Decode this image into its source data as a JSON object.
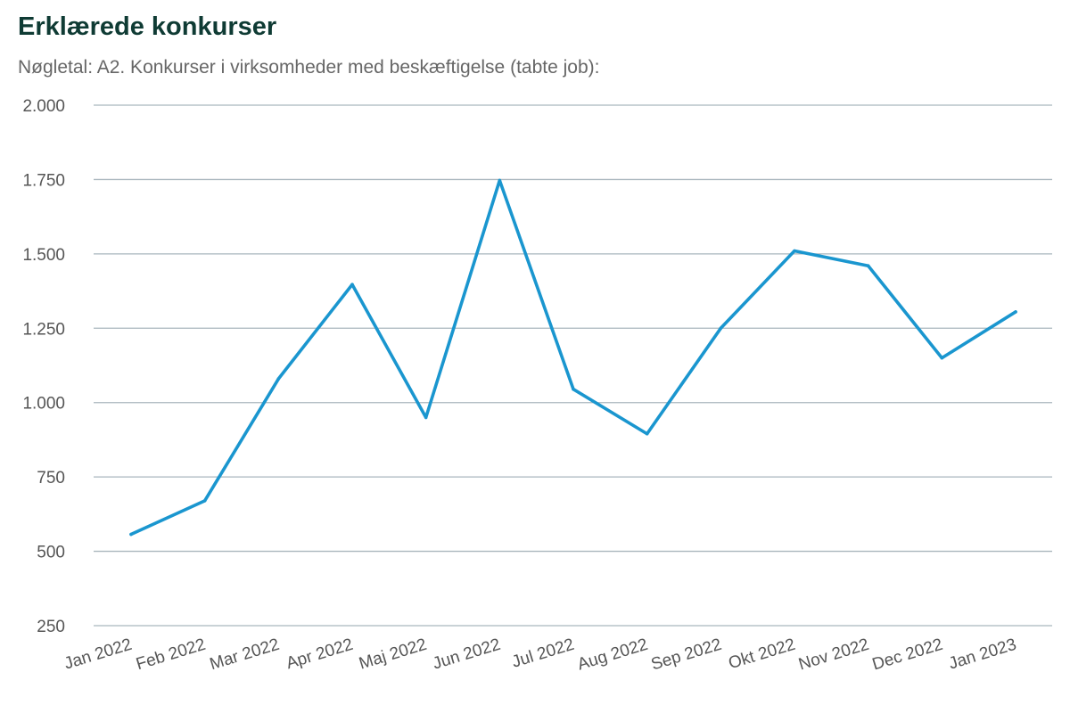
{
  "title": "Erklærede konkurser",
  "subtitle": "Nøgletal: A2. Konkurser i virksomheder med beskæftigelse (tabte job):",
  "colors": {
    "line": "#1a96cf",
    "grid": "#a9b6bd",
    "title": "#0f3b34",
    "subtitle": "#666666"
  },
  "chart_data": {
    "type": "line",
    "title": "Erklærede konkurser",
    "subtitle": "Nøgletal: A2. Konkurser i virksomheder med beskæftigelse (tabte job):",
    "xlabel": "",
    "ylabel": "",
    "categories": [
      "Jan 2022",
      "Feb 2022",
      "Mar 2022",
      "Apr 2022",
      "Maj 2022",
      "Jun 2022",
      "Jul 2022",
      "Aug 2022",
      "Sep 2022",
      "Okt 2022",
      "Nov 2022",
      "Dec 2022",
      "Jan 2023"
    ],
    "series": [
      {
        "values": [
          557,
          670,
          1080,
          1397,
          950,
          1747,
          1045,
          895,
          1250,
          1510,
          1460,
          1150,
          1305
        ]
      }
    ],
    "ylim": [
      250,
      2000
    ],
    "yticks": [
      250,
      500,
      750,
      1000,
      1250,
      1500,
      1750,
      2000
    ],
    "ytick_labels": [
      "250",
      "500",
      "750",
      "1.000",
      "1.250",
      "1.500",
      "1.750",
      "2.000"
    ],
    "grid": true,
    "legend": "none"
  }
}
